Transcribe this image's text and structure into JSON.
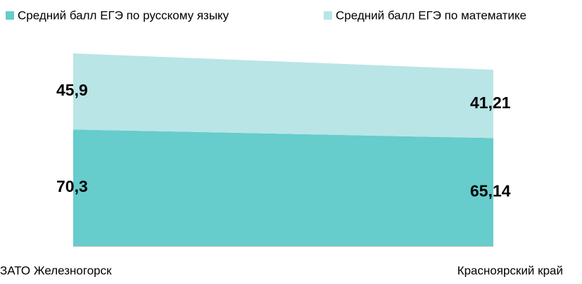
{
  "chart_data": {
    "type": "stacked_area",
    "categories": [
      "ЗАТО Железногорск",
      "Красноярский край"
    ],
    "series": [
      {
        "name": "Средний балл ЕГЭ по русскому языку",
        "color": "#66cccc",
        "values": [
          70.3,
          65.14
        ],
        "value_labels": [
          "70,3",
          "65,14"
        ]
      },
      {
        "name": "Средний балл ЕГЭ по математике",
        "color": "#b9e5e6",
        "values": [
          45.9,
          41.21
        ],
        "value_labels": [
          "45,9",
          "41,21"
        ]
      }
    ],
    "legend": "top"
  }
}
